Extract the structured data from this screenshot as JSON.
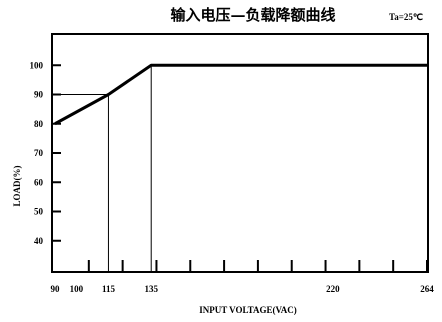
{
  "chart_data": {
    "type": "line",
    "title": "输入电压—负载降额曲线",
    "annotation": "Ta=25℃",
    "xlabel": "INPUT VOLTAGE(VAC)",
    "ylabel": "LOAD(%)",
    "series": [
      {
        "x": [
          90,
          115,
          135,
          264
        ],
        "y": [
          80,
          90,
          100,
          100
        ]
      }
    ],
    "xticks": [
      "90",
      "100",
      "115",
      "135",
      "220",
      "264"
    ],
    "yticks": [
      "40",
      "50",
      "60",
      "70",
      "80",
      "90",
      "100"
    ],
    "xlim": [
      90,
      264
    ],
    "ylim": [
      30,
      110
    ],
    "grid": false,
    "reference_points": [
      {
        "x": 115,
        "y": 90
      },
      {
        "x": 135,
        "y": 100
      }
    ]
  }
}
